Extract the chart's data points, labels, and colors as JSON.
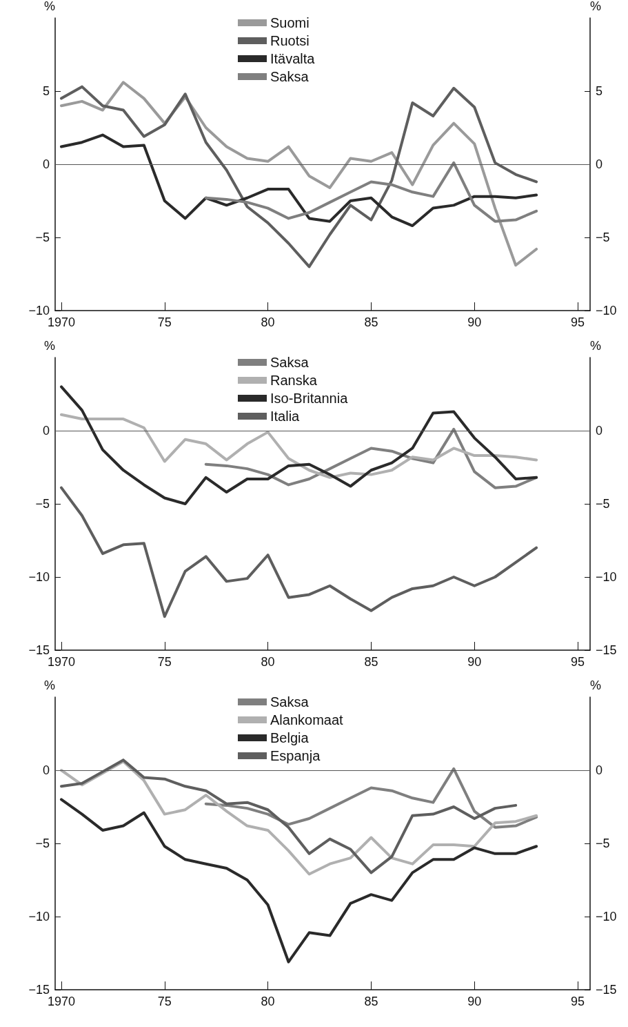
{
  "chart_data": [
    {
      "type": "line",
      "ylabel": "%",
      "y2label": "%",
      "x": [
        1970,
        1971,
        1972,
        1973,
        1974,
        1975,
        1976,
        1977,
        1978,
        1979,
        1980,
        1981,
        1982,
        1983,
        1984,
        1985,
        1986,
        1987,
        1988,
        1989,
        1990,
        1991,
        1992,
        1993
      ],
      "xlim": [
        1969.7,
        1995.6
      ],
      "xticks": [
        {
          "value": 1970,
          "label": "1970"
        },
        {
          "value": 1975,
          "label": "75"
        },
        {
          "value": 1980,
          "label": "80"
        },
        {
          "value": 1985,
          "label": "85"
        },
        {
          "value": 1990,
          "label": "90"
        },
        {
          "value": 1995,
          "label": "95"
        }
      ],
      "ylim": [
        -10,
        10
      ],
      "yticks": [
        -10,
        -5,
        0,
        5
      ],
      "y2lim": [
        -10,
        10
      ],
      "y2ticks": [
        -10,
        -5,
        0,
        5
      ],
      "grid": false,
      "legend": "top",
      "line_style": "solid",
      "ref_lines": [
        {
          "axis": "y",
          "value": 0,
          "color": "#555555"
        }
      ],
      "series": [
        {
          "name": "Suomi",
          "color": "#9a9a9a",
          "values": [
            4.0,
            4.3,
            3.7,
            5.6,
            4.5,
            2.8,
            4.6,
            2.5,
            1.2,
            0.4,
            0.2,
            1.2,
            -0.8,
            -1.6,
            0.4,
            0.2,
            0.8,
            -1.4,
            1.3,
            2.8,
            1.4,
            -3.0,
            -6.9,
            -5.8
          ]
        },
        {
          "name": "Ruotsi",
          "color": "#5e5e5e",
          "values": [
            4.5,
            5.3,
            4.0,
            3.7,
            1.9,
            2.7,
            4.8,
            1.5,
            -0.4,
            -2.9,
            -4.0,
            -5.4,
            -7.0,
            -4.8,
            -2.8,
            -3.8,
            -1.1,
            4.2,
            3.3,
            5.2,
            3.9,
            0.1,
            -0.7,
            -1.2
          ]
        },
        {
          "name": "Itävalta",
          "color": "#2a2a2a",
          "values": [
            1.2,
            1.5,
            2.0,
            1.2,
            1.3,
            -2.5,
            -3.7,
            -2.3,
            -2.8,
            -2.3,
            -1.7,
            -1.7,
            -3.7,
            -3.9,
            -2.5,
            -2.3,
            -3.6,
            -4.2,
            -3.0,
            -2.8,
            -2.2,
            -2.2,
            -2.3,
            -2.1
          ]
        },
        {
          "name": "Saksa",
          "color": "#7f7f7f",
          "values": [
            null,
            null,
            null,
            null,
            null,
            null,
            null,
            -2.3,
            -2.4,
            -2.6,
            -3.0,
            -3.7,
            -3.3,
            -2.6,
            -1.9,
            -1.2,
            -1.4,
            -1.9,
            -2.2,
            0.1,
            -2.8,
            -3.9,
            -3.8,
            -3.2
          ]
        }
      ]
    },
    {
      "type": "line",
      "ylabel": "%",
      "y2label": "%",
      "x": [
        1970,
        1971,
        1972,
        1973,
        1974,
        1975,
        1976,
        1977,
        1978,
        1979,
        1980,
        1981,
        1982,
        1983,
        1984,
        1985,
        1986,
        1987,
        1988,
        1989,
        1990,
        1991,
        1992,
        1993
      ],
      "xlim": [
        1969.7,
        1995.6
      ],
      "xticks": [
        {
          "value": 1970,
          "label": "1970"
        },
        {
          "value": 1975,
          "label": "75"
        },
        {
          "value": 1980,
          "label": "80"
        },
        {
          "value": 1985,
          "label": "85"
        },
        {
          "value": 1990,
          "label": "90"
        },
        {
          "value": 1995,
          "label": "95"
        }
      ],
      "ylim": [
        -15,
        5
      ],
      "yticks": [
        -15,
        -10,
        -5,
        0
      ],
      "y2lim": [
        -15,
        5
      ],
      "y2ticks": [
        -15,
        -10,
        -5,
        0
      ],
      "grid": false,
      "legend": "top",
      "line_style": "solid",
      "ref_lines": [
        {
          "axis": "y",
          "value": 0,
          "color": "#555555"
        }
      ],
      "series": [
        {
          "name": "Saksa",
          "color": "#7f7f7f",
          "values": [
            null,
            null,
            null,
            null,
            null,
            null,
            null,
            -2.3,
            -2.4,
            -2.6,
            -3.0,
            -3.7,
            -3.3,
            -2.6,
            -1.9,
            -1.2,
            -1.4,
            -1.9,
            -2.2,
            0.1,
            -2.8,
            -3.9,
            -3.8,
            -3.2
          ]
        },
        {
          "name": "Ranska",
          "color": "#b0b0b0",
          "values": [
            1.1,
            0.8,
            0.8,
            0.8,
            0.2,
            -2.1,
            -0.6,
            -0.9,
            -2.0,
            -0.9,
            -0.1,
            -1.9,
            -2.7,
            -3.2,
            -2.9,
            -3.0,
            -2.7,
            -1.8,
            -2.0,
            -1.2,
            -1.7,
            -1.7,
            -1.8,
            -2.0
          ]
        },
        {
          "name": "Iso-Britannia",
          "color": "#2a2a2a",
          "values": [
            3.0,
            1.4,
            -1.3,
            -2.7,
            -3.7,
            -4.6,
            -5.0,
            -3.2,
            -4.2,
            -3.3,
            -3.3,
            -2.4,
            -2.3,
            -3.0,
            -3.8,
            -2.7,
            -2.2,
            -1.2,
            1.2,
            1.3,
            -0.5,
            -1.8,
            -3.3,
            -3.2
          ]
        },
        {
          "name": "Italia",
          "color": "#5e5e5e",
          "values": [
            -3.9,
            -5.8,
            -8.4,
            -7.8,
            -7.7,
            -12.7,
            -9.6,
            -8.6,
            -10.3,
            -10.1,
            -8.5,
            -11.4,
            -11.2,
            -10.6,
            -11.5,
            -12.3,
            -11.4,
            -10.8,
            -10.6,
            -10.0,
            -10.6,
            -10.0,
            -9.0,
            -8.0
          ]
        }
      ]
    },
    {
      "type": "line",
      "ylabel": "%",
      "y2label": "%",
      "x": [
        1970,
        1971,
        1972,
        1973,
        1974,
        1975,
        1976,
        1977,
        1978,
        1979,
        1980,
        1981,
        1982,
        1983,
        1984,
        1985,
        1986,
        1987,
        1988,
        1989,
        1990,
        1991,
        1992,
        1993
      ],
      "xlim": [
        1969.7,
        1995.6
      ],
      "xticks": [
        {
          "value": 1970,
          "label": "1970"
        },
        {
          "value": 1975,
          "label": "75"
        },
        {
          "value": 1980,
          "label": "80"
        },
        {
          "value": 1985,
          "label": "85"
        },
        {
          "value": 1990,
          "label": "90"
        },
        {
          "value": 1995,
          "label": "95"
        }
      ],
      "ylim": [
        -15,
        5
      ],
      "yticks": [
        -15,
        -10,
        -5,
        0
      ],
      "y2lim": [
        -15,
        5
      ],
      "y2ticks": [
        -15,
        -10,
        -5,
        0
      ],
      "grid": false,
      "legend": "top",
      "line_style": "solid",
      "ref_lines": [
        {
          "axis": "y",
          "value": 0,
          "color": "#555555"
        }
      ],
      "series": [
        {
          "name": "Saksa",
          "color": "#7f7f7f",
          "values": [
            null,
            null,
            null,
            null,
            null,
            null,
            null,
            -2.3,
            -2.4,
            -2.6,
            -3.0,
            -3.7,
            -3.3,
            -2.6,
            -1.9,
            -1.2,
            -1.4,
            -1.9,
            -2.2,
            0.1,
            -2.8,
            -3.9,
            -3.8,
            -3.2
          ]
        },
        {
          "name": "Alankomaat",
          "color": "#b0b0b0",
          "values": [
            0.0,
            -1.0,
            -0.2,
            0.6,
            -0.7,
            -3.0,
            -2.7,
            -1.7,
            -2.8,
            -3.8,
            -4.1,
            -5.5,
            -7.1,
            -6.4,
            -6.0,
            -4.6,
            -6.0,
            -6.4,
            -5.1,
            -5.1,
            -5.2,
            -3.6,
            -3.5,
            -3.1
          ]
        },
        {
          "name": "Belgia",
          "color": "#2a2a2a",
          "values": [
            -2.0,
            -3.0,
            -4.1,
            -3.8,
            -2.9,
            -5.2,
            -6.1,
            -6.4,
            -6.7,
            -7.5,
            -9.2,
            -13.1,
            -11.1,
            -11.3,
            -9.1,
            -8.5,
            -8.9,
            -7.0,
            -6.1,
            -6.1,
            -5.3,
            -5.7,
            -5.7,
            -5.2
          ]
        },
        {
          "name": "Espanja",
          "color": "#5e5e5e",
          "values": [
            -1.1,
            -0.9,
            -0.1,
            0.7,
            -0.5,
            -0.6,
            -1.1,
            -1.4,
            -2.3,
            -2.2,
            -2.7,
            -3.9,
            -5.7,
            -4.7,
            -5.4,
            -7.0,
            -5.9,
            -3.1,
            -3.0,
            -2.5,
            -3.3,
            -2.6,
            -2.4,
            null
          ]
        }
      ]
    }
  ]
}
